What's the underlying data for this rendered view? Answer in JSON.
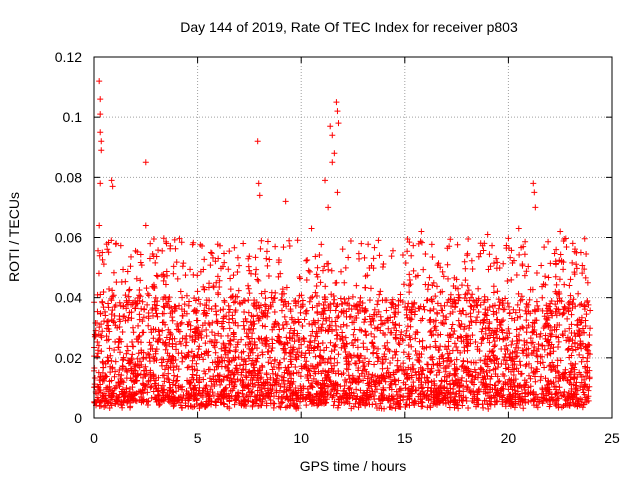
{
  "chart_data": {
    "type": "scatter",
    "title": "Day 144 of 2019, Rate Of TEC Index for receiver p803",
    "xlabel": "GPS time / hours",
    "ylabel": "ROTI / TECUs",
    "xlim": [
      0,
      25
    ],
    "ylim": [
      0,
      0.12
    ],
    "x_ticks": [
      "0",
      "5",
      "10",
      "15",
      "20",
      "25"
    ],
    "y_ticks": [
      "0",
      "0.02",
      "0.04",
      "0.06",
      "0.08",
      "0.1",
      "0.12"
    ],
    "x_tick_values": [
      0,
      5,
      10,
      15,
      20,
      25
    ],
    "y_tick_values": [
      0,
      0.02,
      0.04,
      0.06,
      0.08,
      0.1,
      0.12
    ],
    "grid": true,
    "marker": "+",
    "series_color": "#ff0000",
    "data_x_range": [
      0,
      23.95
    ],
    "bulk_range": [
      0.005,
      0.04
    ],
    "outliers": [
      {
        "x": 0.25,
        "y": 0.112
      },
      {
        "x": 0.3,
        "y": 0.106
      },
      {
        "x": 0.3,
        "y": 0.101
      },
      {
        "x": 0.3,
        "y": 0.095
      },
      {
        "x": 0.35,
        "y": 0.092
      },
      {
        "x": 0.35,
        "y": 0.089
      },
      {
        "x": 0.3,
        "y": 0.078
      },
      {
        "x": 0.25,
        "y": 0.064
      },
      {
        "x": 0.85,
        "y": 0.079
      },
      {
        "x": 0.9,
        "y": 0.077
      },
      {
        "x": 2.5,
        "y": 0.085
      },
      {
        "x": 2.5,
        "y": 0.064
      },
      {
        "x": 7.9,
        "y": 0.092
      },
      {
        "x": 7.95,
        "y": 0.078
      },
      {
        "x": 8.0,
        "y": 0.074
      },
      {
        "x": 9.25,
        "y": 0.072
      },
      {
        "x": 11.4,
        "y": 0.097
      },
      {
        "x": 11.5,
        "y": 0.094
      },
      {
        "x": 11.7,
        "y": 0.105
      },
      {
        "x": 11.75,
        "y": 0.102
      },
      {
        "x": 11.8,
        "y": 0.098
      },
      {
        "x": 11.6,
        "y": 0.088
      },
      {
        "x": 11.5,
        "y": 0.085
      },
      {
        "x": 11.15,
        "y": 0.079
      },
      {
        "x": 11.75,
        "y": 0.075
      },
      {
        "x": 11.3,
        "y": 0.07
      },
      {
        "x": 21.2,
        "y": 0.078
      },
      {
        "x": 21.25,
        "y": 0.075
      },
      {
        "x": 21.3,
        "y": 0.07
      },
      {
        "x": 0.4,
        "y": 0.055
      },
      {
        "x": 2.7,
        "y": 0.053
      },
      {
        "x": 3.5,
        "y": 0.058
      },
      {
        "x": 7.2,
        "y": 0.058
      },
      {
        "x": 10.5,
        "y": 0.063
      },
      {
        "x": 15.8,
        "y": 0.062
      },
      {
        "x": 19.0,
        "y": 0.061
      },
      {
        "x": 20.5,
        "y": 0.063
      },
      {
        "x": 22.5,
        "y": 0.062
      },
      {
        "x": 23.5,
        "y": 0.055
      }
    ]
  }
}
